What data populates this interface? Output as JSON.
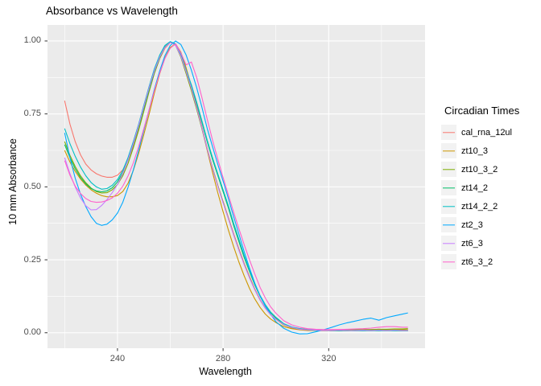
{
  "title": "Absorbance vs Wavelength",
  "chart_data": {
    "type": "line",
    "title": "Absorbance vs Wavelength",
    "xlabel": "Wavelength",
    "ylabel": "10 mm Absorbance",
    "legend_title": "Circadian Times",
    "legend_position": "right",
    "grid": true,
    "xlim": [
      213.5,
      356.5
    ],
    "ylim": [
      -0.053,
      1.055
    ],
    "x_ticks": [
      240,
      280,
      320
    ],
    "x_tick_labels": [
      "240",
      "280",
      "320"
    ],
    "x_minor_ticks": [
      220,
      260,
      300,
      340
    ],
    "y_ticks": [
      0,
      0.25,
      0.5,
      0.75,
      1.0
    ],
    "y_tick_labels": [
      "0.00",
      "0.25",
      "0.50",
      "0.75",
      "1.00"
    ],
    "y_minor_ticks": [
      0.125,
      0.375,
      0.625,
      0.875
    ],
    "colors": {
      "panel_bg": "#EBEBEB",
      "grid": "#FFFFFF",
      "tick_mark": "#333333",
      "tick_text": "#4D4D4D",
      "text": "#000000",
      "legend_key_bg": "#F2F2F2"
    },
    "x": [
      220,
      222,
      224,
      226,
      228,
      230,
      232,
      234,
      236,
      238,
      240,
      242,
      244,
      246,
      248,
      250,
      252,
      254,
      256,
      258,
      260,
      262,
      264,
      266,
      268,
      270,
      272,
      274,
      276,
      278,
      280,
      282,
      284,
      286,
      288,
      290,
      292,
      294,
      296,
      298,
      300,
      303,
      306,
      309,
      312,
      315,
      318,
      321,
      324,
      327,
      330,
      333,
      336,
      339,
      342,
      345,
      348,
      350
    ],
    "series": [
      {
        "name": "cal_rna_12ul",
        "color": "#F8766D",
        "values": [
          0.795,
          0.715,
          0.655,
          0.61,
          0.578,
          0.558,
          0.545,
          0.537,
          0.533,
          0.533,
          0.54,
          0.558,
          0.592,
          0.64,
          0.698,
          0.762,
          0.828,
          0.89,
          0.94,
          0.975,
          0.995,
          0.99,
          0.958,
          0.905,
          0.845,
          0.778,
          0.705,
          0.632,
          0.563,
          0.505,
          0.45,
          0.395,
          0.34,
          0.287,
          0.238,
          0.193,
          0.15,
          0.114,
          0.085,
          0.063,
          0.047,
          0.029,
          0.019,
          0.014,
          0.012,
          0.011,
          0.01,
          0.01,
          0.011,
          0.01,
          0.011,
          0.012,
          0.011,
          0.012,
          0.011,
          0.01,
          0.01,
          0.01
        ]
      },
      {
        "name": "zt10_3",
        "color": "#CD9600",
        "values": [
          0.625,
          0.585,
          0.553,
          0.527,
          0.506,
          0.49,
          0.478,
          0.47,
          0.466,
          0.466,
          0.47,
          0.484,
          0.512,
          0.556,
          0.614,
          0.68,
          0.75,
          0.822,
          0.888,
          0.942,
          0.978,
          0.99,
          0.962,
          0.908,
          0.845,
          0.775,
          0.7,
          0.625,
          0.55,
          0.48,
          0.415,
          0.352,
          0.295,
          0.242,
          0.195,
          0.152,
          0.116,
          0.087,
          0.064,
          0.047,
          0.035,
          0.021,
          0.014,
          0.01,
          0.008,
          0.008,
          0.007,
          0.008,
          0.007,
          0.008,
          0.009,
          0.008,
          0.009,
          0.01,
          0.009,
          0.01,
          0.01,
          0.01
        ]
      },
      {
        "name": "zt10_3_2",
        "color": "#7CAE00",
        "values": [
          0.655,
          0.608,
          0.57,
          0.538,
          0.514,
          0.496,
          0.484,
          0.479,
          0.48,
          0.49,
          0.508,
          0.538,
          0.58,
          0.634,
          0.694,
          0.76,
          0.828,
          0.89,
          0.94,
          0.978,
          0.995,
          0.985,
          0.945,
          0.888,
          0.83,
          0.766,
          0.698,
          0.63,
          0.565,
          0.505,
          0.448,
          0.392,
          0.336,
          0.284,
          0.235,
          0.19,
          0.148,
          0.112,
          0.084,
          0.062,
          0.046,
          0.027,
          0.017,
          0.012,
          0.01,
          0.009,
          0.009,
          0.01,
          0.009,
          0.01,
          0.011,
          0.01,
          0.011,
          0.012,
          0.012,
          0.013,
          0.013,
          0.014
        ]
      },
      {
        "name": "zt14_2",
        "color": "#00BE67",
        "values": [
          0.645,
          0.6,
          0.562,
          0.532,
          0.51,
          0.494,
          0.486,
          0.483,
          0.486,
          0.497,
          0.517,
          0.548,
          0.592,
          0.646,
          0.706,
          0.77,
          0.835,
          0.895,
          0.944,
          0.98,
          0.996,
          0.988,
          0.952,
          0.898,
          0.846,
          0.786,
          0.72,
          0.655,
          0.594,
          0.54,
          0.484,
          0.428,
          0.368,
          0.312,
          0.258,
          0.21,
          0.164,
          0.125,
          0.093,
          0.069,
          0.051,
          0.03,
          0.019,
          0.013,
          0.01,
          0.008,
          0.008,
          0.007,
          0.008,
          0.007,
          0.008,
          0.007,
          0.008,
          0.007,
          0.008,
          0.007,
          0.007,
          0.007
        ]
      },
      {
        "name": "zt14_2_2",
        "color": "#00BFC4",
        "values": [
          0.7,
          0.648,
          0.605,
          0.568,
          0.538,
          0.515,
          0.5,
          0.492,
          0.494,
          0.505,
          0.525,
          0.556,
          0.6,
          0.655,
          0.715,
          0.78,
          0.845,
          0.905,
          0.952,
          0.985,
          0.998,
          0.99,
          0.955,
          0.9,
          0.85,
          0.79,
          0.725,
          0.66,
          0.6,
          0.545,
          0.49,
          0.435,
          0.375,
          0.32,
          0.265,
          0.215,
          0.168,
          0.128,
          0.096,
          0.071,
          0.053,
          0.031,
          0.02,
          0.014,
          0.011,
          0.009,
          0.008,
          0.008,
          0.007,
          0.008,
          0.007,
          0.008,
          0.007,
          0.008,
          0.007,
          0.008,
          0.007,
          0.007
        ]
      },
      {
        "name": "zt2_3",
        "color": "#00A9FF",
        "values": [
          0.685,
          0.6,
          0.53,
          0.475,
          0.432,
          0.398,
          0.375,
          0.368,
          0.372,
          0.387,
          0.41,
          0.447,
          0.498,
          0.558,
          0.625,
          0.695,
          0.765,
          0.835,
          0.898,
          0.95,
          0.985,
          1.0,
          0.988,
          0.952,
          0.9,
          0.84,
          0.772,
          0.7,
          0.638,
          0.578,
          0.52,
          0.46,
          0.398,
          0.338,
          0.278,
          0.222,
          0.17,
          0.126,
          0.091,
          0.064,
          0.038,
          0.015,
          0.002,
          -0.004,
          -0.003,
          0.003,
          0.01,
          0.018,
          0.027,
          0.034,
          0.04,
          0.046,
          0.05,
          0.043,
          0.052,
          0.058,
          0.064,
          0.068
        ]
      },
      {
        "name": "zt6_3",
        "color": "#C77CFF",
        "values": [
          0.6,
          0.545,
          0.5,
          0.462,
          0.435,
          0.421,
          0.422,
          0.436,
          0.456,
          0.48,
          0.508,
          0.545,
          0.592,
          0.648,
          0.71,
          0.775,
          0.84,
          0.898,
          0.945,
          0.978,
          0.995,
          0.985,
          0.948,
          0.895,
          0.838,
          0.772,
          0.702,
          0.63,
          0.562,
          0.502,
          0.445,
          0.39,
          0.335,
          0.282,
          0.233,
          0.188,
          0.147,
          0.112,
          0.084,
          0.062,
          0.046,
          0.028,
          0.018,
          0.012,
          0.01,
          0.009,
          0.008,
          0.008,
          0.009,
          0.008,
          0.008,
          0.009,
          0.008,
          0.009,
          0.008,
          0.009,
          0.008,
          0.008
        ]
      },
      {
        "name": "zt6_3_2",
        "color": "#FF61CC",
        "values": [
          0.59,
          0.54,
          0.503,
          0.477,
          0.46,
          0.45,
          0.447,
          0.448,
          0.453,
          0.462,
          0.478,
          0.502,
          0.537,
          0.582,
          0.638,
          0.7,
          0.765,
          0.83,
          0.89,
          0.94,
          0.975,
          0.99,
          0.96,
          0.918,
          0.928,
          0.875,
          0.805,
          0.732,
          0.66,
          0.595,
          0.532,
          0.472,
          0.413,
          0.356,
          0.302,
          0.25,
          0.201,
          0.156,
          0.119,
          0.089,
          0.067,
          0.041,
          0.027,
          0.019,
          0.014,
          0.012,
          0.011,
          0.011,
          0.011,
          0.012,
          0.013,
          0.014,
          0.016,
          0.019,
          0.021,
          0.021,
          0.019,
          0.019
        ]
      }
    ]
  }
}
